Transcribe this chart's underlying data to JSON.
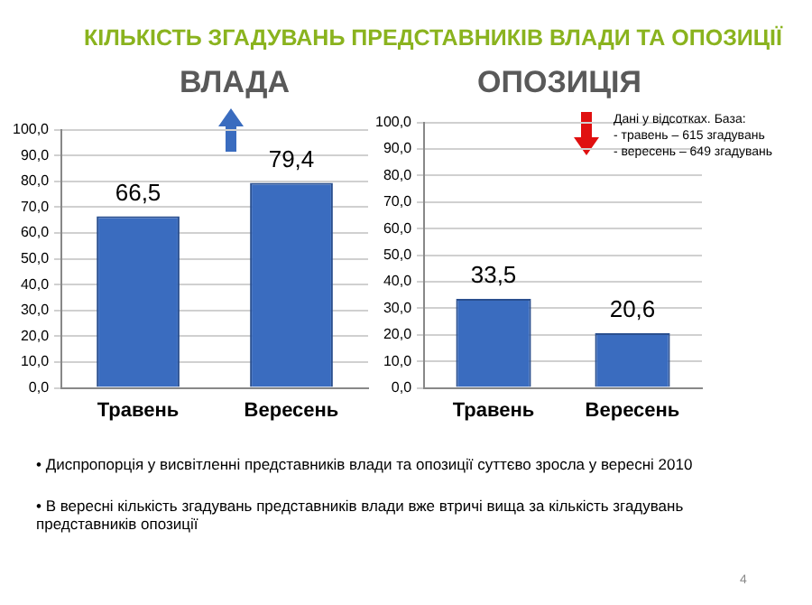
{
  "chart_data": [
    {
      "type": "bar",
      "title": "КІЛЬКІСТЬ ЗГАДУВАНЬ ПРЕДСТАВНИКІВ ВЛАДИ ТА ОПОЗИЦІЇ",
      "subtitle": "ВЛАДА",
      "categories": [
        "Травень",
        "Вересень"
      ],
      "values": [
        66.5,
        79.4
      ],
      "value_labels": [
        "66,5",
        "79,4"
      ],
      "color": "#3a6cbf",
      "ylim": [
        0,
        100
      ],
      "yticks": [
        {
          "value": 0,
          "label": "0,0"
        },
        {
          "value": 10,
          "label": "10,0"
        },
        {
          "value": 20,
          "label": "20,0"
        },
        {
          "value": 30,
          "label": "30,0"
        },
        {
          "value": 40,
          "label": "40,0"
        },
        {
          "value": 50,
          "label": "50,0"
        },
        {
          "value": 60,
          "label": "60,0"
        },
        {
          "value": 70,
          "label": "70,0"
        },
        {
          "value": 80,
          "label": "80,0"
        },
        {
          "value": 90,
          "label": "90,0"
        },
        {
          "value": 100,
          "label": "100,0"
        }
      ],
      "grid": "y",
      "legend": false
    },
    {
      "type": "bar",
      "title": "ОПОЗИЦІЯ",
      "categories": [
        "Травень",
        "Вересень"
      ],
      "values": [
        33.5,
        20.6
      ],
      "value_labels": [
        "33,5",
        "20,6"
      ],
      "color": "#3a6cbf",
      "ylim": [
        0,
        100
      ],
      "yticks": [
        {
          "value": 0,
          "label": "0,0"
        },
        {
          "value": 10,
          "label": "10,0"
        },
        {
          "value": 20,
          "label": "20,0"
        },
        {
          "value": 30,
          "label": "30,0"
        },
        {
          "value": 40,
          "label": "40,0"
        },
        {
          "value": 50,
          "label": "50,0"
        },
        {
          "value": 60,
          "label": "60,0"
        },
        {
          "value": 70,
          "label": "70,0"
        },
        {
          "value": 80,
          "label": "80,0"
        },
        {
          "value": 90,
          "label": "90,0"
        },
        {
          "value": 100,
          "label": "100,0"
        }
      ],
      "grid": "y",
      "legend": false,
      "annotations": [
        "Дані у відсотках. База:\n- травень – 615 згадувань\n- вересень – 649 згадувань",
        "• Диспропорція у висвітленні представників влади та опозиції суттєво зросла у вересні 2010",
        "• В вересні кількість згадувань представників влади вже втричі вища за кількість згадувань представників опозиції",
        "4"
      ]
    }
  ]
}
